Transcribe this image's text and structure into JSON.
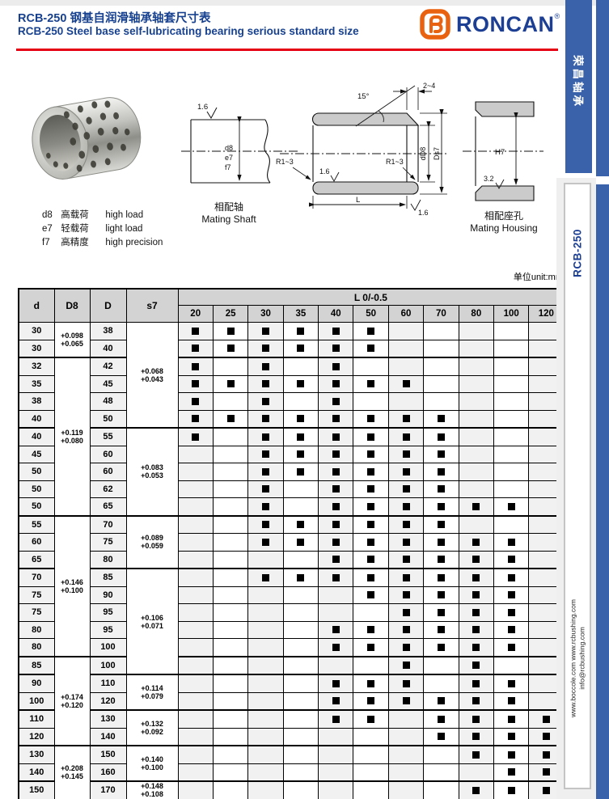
{
  "header": {
    "title_zh": "RCB-250 钢基自润滑轴承轴套尺寸表",
    "title_en": "RCB-250 Steel base self-lubricating bearing serious standard size",
    "brand": "RONCAN",
    "brand_mark": "®"
  },
  "sidebar": {
    "tab_series": "荣昌轴承",
    "tab_model": "RCB-250",
    "website_line": "www.boccole.com    www.rcbushing.com",
    "email_line": "info@rcbushing.com"
  },
  "legend": {
    "items": [
      {
        "code": "d8",
        "zh": "高载荷",
        "en": "high load"
      },
      {
        "code": "e7",
        "zh": "轻载荷",
        "en": "light load"
      },
      {
        "code": "f7",
        "zh": "高精度",
        "en": "high precision"
      }
    ]
  },
  "drawings": {
    "shaft": {
      "finish": "1.6",
      "fits": [
        "d8",
        "e7",
        "f7"
      ],
      "caption_zh": "相配轴",
      "caption_en": "Mating Shaft"
    },
    "bushing": {
      "angle": "15°",
      "chamfer": "2~4",
      "bore_dim": "dD8",
      "od_dim": "Ds7",
      "radius_left": "R1~3",
      "radius_right": "R1~3",
      "finish_inner": "1.6",
      "finish_outer": "1.6",
      "length_dim": "L"
    },
    "housing": {
      "fit": "H7",
      "finish": "3.2",
      "caption_zh": "相配座孔",
      "caption_en": "Mating Housing"
    }
  },
  "unit_note": "单位unit:mm",
  "table": {
    "headers": {
      "d": "d",
      "d8": "D8",
      "dd": "D",
      "s7": "s7",
      "l_group": "L 0/-0.5"
    },
    "l_values": [
      20,
      25,
      30,
      35,
      40,
      50,
      60,
      70,
      80,
      100,
      120
    ],
    "d8_groups": [
      {
        "rows": 2,
        "lines": [
          "+0.098",
          "+0.065"
        ]
      },
      {
        "rows": 9,
        "lines": [
          "+0.119",
          "+0.080"
        ]
      },
      {
        "rows": 8,
        "lines": [
          "+0.146",
          "+0.100"
        ]
      },
      {
        "rows": 5,
        "lines": [
          "+0.174",
          "+0.120"
        ]
      },
      {
        "rows": 3,
        "lines": [
          "+0.208",
          "+0.145"
        ]
      }
    ],
    "s7_groups": [
      {
        "rows": 6,
        "lines": [
          "+0.068",
          "+0.043"
        ]
      },
      {
        "rows": 5,
        "lines": [
          "+0.083",
          "+0.053"
        ]
      },
      {
        "rows": 3,
        "lines": [
          "+0.089",
          "+0.059"
        ]
      },
      {
        "rows": 6,
        "lines": [
          "+0.106",
          "+0.071"
        ]
      },
      {
        "rows": 2,
        "lines": [
          "+0.114",
          "+0.079"
        ]
      },
      {
        "rows": 2,
        "lines": [
          "+0.132",
          "+0.092"
        ]
      },
      {
        "rows": 2,
        "lines": [
          "+0.140",
          "+0.100"
        ]
      },
      {
        "rows": 1,
        "lines": [
          "+0.148",
          "+0.108"
        ]
      }
    ],
    "rows": [
      {
        "d": 30,
        "D": 38,
        "L": [
          20,
          25,
          30,
          35,
          40,
          50
        ]
      },
      {
        "d": 30,
        "D": 40,
        "L": [
          20,
          25,
          30,
          35,
          40,
          50
        ]
      },
      {
        "d": 32,
        "D": 42,
        "L": [
          20,
          30,
          40
        ]
      },
      {
        "d": 35,
        "D": 45,
        "L": [
          20,
          25,
          30,
          35,
          40,
          50,
          60
        ]
      },
      {
        "d": 38,
        "D": 48,
        "L": [
          20,
          30,
          40
        ]
      },
      {
        "d": 40,
        "D": 50,
        "L": [
          20,
          25,
          30,
          35,
          40,
          50,
          60,
          70
        ]
      },
      {
        "d": 40,
        "D": 55,
        "L": [
          20,
          30,
          35,
          40,
          50,
          60,
          70
        ]
      },
      {
        "d": 45,
        "D": 60,
        "L": [
          30,
          35,
          40,
          50,
          60,
          70
        ]
      },
      {
        "d": 50,
        "D": 60,
        "L": [
          30,
          35,
          40,
          50,
          60,
          70
        ]
      },
      {
        "d": 50,
        "D": 62,
        "L": [
          30,
          40,
          50,
          60,
          70
        ]
      },
      {
        "d": 50,
        "D": 65,
        "L": [
          30,
          40,
          50,
          60,
          70,
          80,
          100
        ]
      },
      {
        "d": 55,
        "D": 70,
        "L": [
          30,
          35,
          40,
          50,
          60,
          70
        ]
      },
      {
        "d": 60,
        "D": 75,
        "L": [
          30,
          35,
          40,
          50,
          60,
          70,
          80,
          100
        ]
      },
      {
        "d": 65,
        "D": 80,
        "L": [
          40,
          50,
          60,
          70,
          80,
          100
        ]
      },
      {
        "d": 70,
        "D": 85,
        "L": [
          30,
          35,
          40,
          50,
          60,
          70,
          80,
          100
        ]
      },
      {
        "d": 75,
        "D": 90,
        "L": [
          50,
          60,
          70,
          80,
          100
        ]
      },
      {
        "d": 75,
        "D": 95,
        "L": [
          60,
          70,
          80,
          100
        ]
      },
      {
        "d": 80,
        "D": 95,
        "L": [
          40,
          50,
          60,
          70,
          80,
          100
        ]
      },
      {
        "d": 80,
        "D": 100,
        "L": [
          40,
          50,
          60,
          70,
          80,
          100
        ]
      },
      {
        "d": 85,
        "D": 100,
        "L": [
          60,
          80
        ]
      },
      {
        "d": 90,
        "D": 110,
        "L": [
          40,
          50,
          60,
          80,
          100
        ]
      },
      {
        "d": 100,
        "D": 120,
        "L": [
          40,
          50,
          60,
          70,
          80,
          100
        ]
      },
      {
        "d": 110,
        "D": 130,
        "L": [
          40,
          50,
          70,
          80,
          100,
          120
        ]
      },
      {
        "d": 120,
        "D": 140,
        "L": [
          70,
          80,
          100,
          120
        ]
      },
      {
        "d": 130,
        "D": 150,
        "L": [
          80,
          100,
          120
        ]
      },
      {
        "d": 140,
        "D": 160,
        "L": [
          100,
          120
        ]
      },
      {
        "d": 150,
        "D": 170,
        "L": [
          80,
          100,
          120
        ]
      }
    ]
  }
}
